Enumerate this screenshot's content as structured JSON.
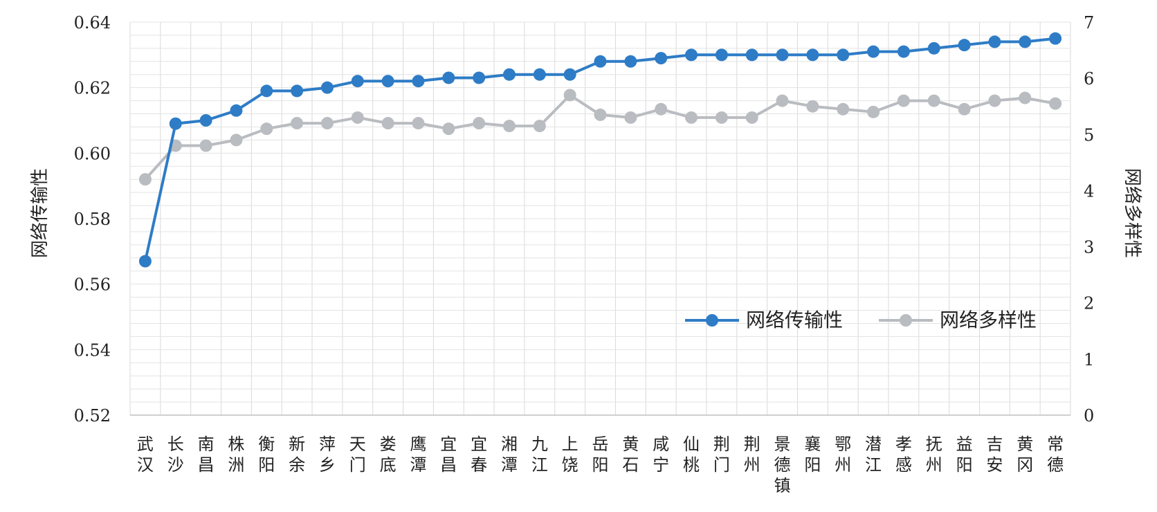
{
  "chart_data": {
    "type": "line",
    "title": "",
    "categories": [
      [
        "武",
        "汉"
      ],
      [
        "长",
        "沙"
      ],
      [
        "南",
        "昌"
      ],
      [
        "株",
        "洲"
      ],
      [
        "衡",
        "阳"
      ],
      [
        "新",
        "余"
      ],
      [
        "萍",
        "乡"
      ],
      [
        "天",
        "门"
      ],
      [
        "娄",
        "底"
      ],
      [
        "鹰",
        "潭"
      ],
      [
        "宜",
        "昌"
      ],
      [
        "宜",
        "春"
      ],
      [
        "湘",
        "潭"
      ],
      [
        "九",
        "江"
      ],
      [
        "上",
        "饶"
      ],
      [
        "岳",
        "阳"
      ],
      [
        "黄",
        "石"
      ],
      [
        "咸",
        "宁"
      ],
      [
        "仙",
        "桃"
      ],
      [
        "荆",
        "门"
      ],
      [
        "荆",
        "州"
      ],
      [
        "景",
        "德",
        "镇"
      ],
      [
        "襄",
        "阳"
      ],
      [
        "鄂",
        "州"
      ],
      [
        "潜",
        "江"
      ],
      [
        "孝",
        "感"
      ],
      [
        "抚",
        "州"
      ],
      [
        "益",
        "阳"
      ],
      [
        "吉",
        "安"
      ],
      [
        "黄",
        "冈"
      ],
      [
        "常",
        "德"
      ]
    ],
    "y_left": {
      "label": "网络传输性",
      "ylim": [
        0.52,
        0.64
      ],
      "ticks": [
        "0.52",
        "0.54",
        "0.56",
        "0.58",
        "0.60",
        "0.62",
        "0.64"
      ]
    },
    "y_right": {
      "label": "网络多样性",
      "ylim": [
        0,
        7
      ],
      "ticks": [
        "0",
        "1",
        "2",
        "3",
        "4",
        "5",
        "6",
        "7"
      ]
    },
    "series": [
      {
        "name": "网络传输性",
        "axis": "left",
        "color": "#2e7cc6",
        "values": [
          0.567,
          0.609,
          0.61,
          0.613,
          0.619,
          0.619,
          0.62,
          0.622,
          0.622,
          0.622,
          0.623,
          0.623,
          0.624,
          0.624,
          0.624,
          0.628,
          0.628,
          0.629,
          0.63,
          0.63,
          0.63,
          0.63,
          0.63,
          0.63,
          0.631,
          0.631,
          0.632,
          0.633,
          0.634,
          0.634,
          0.635
        ]
      },
      {
        "name": "网络多样性",
        "axis": "right",
        "color": "#b9bcc0",
        "values": [
          4.2,
          4.8,
          4.8,
          4.9,
          5.1,
          5.2,
          5.2,
          5.3,
          5.2,
          5.2,
          5.1,
          5.2,
          5.15,
          5.15,
          5.7,
          5.35,
          5.3,
          5.45,
          5.3,
          5.3,
          5.3,
          5.6,
          5.5,
          5.45,
          5.4,
          5.6,
          5.6,
          5.45,
          5.6,
          5.65,
          5.55
        ]
      }
    ],
    "grid": true,
    "legend": "lower-right"
  }
}
